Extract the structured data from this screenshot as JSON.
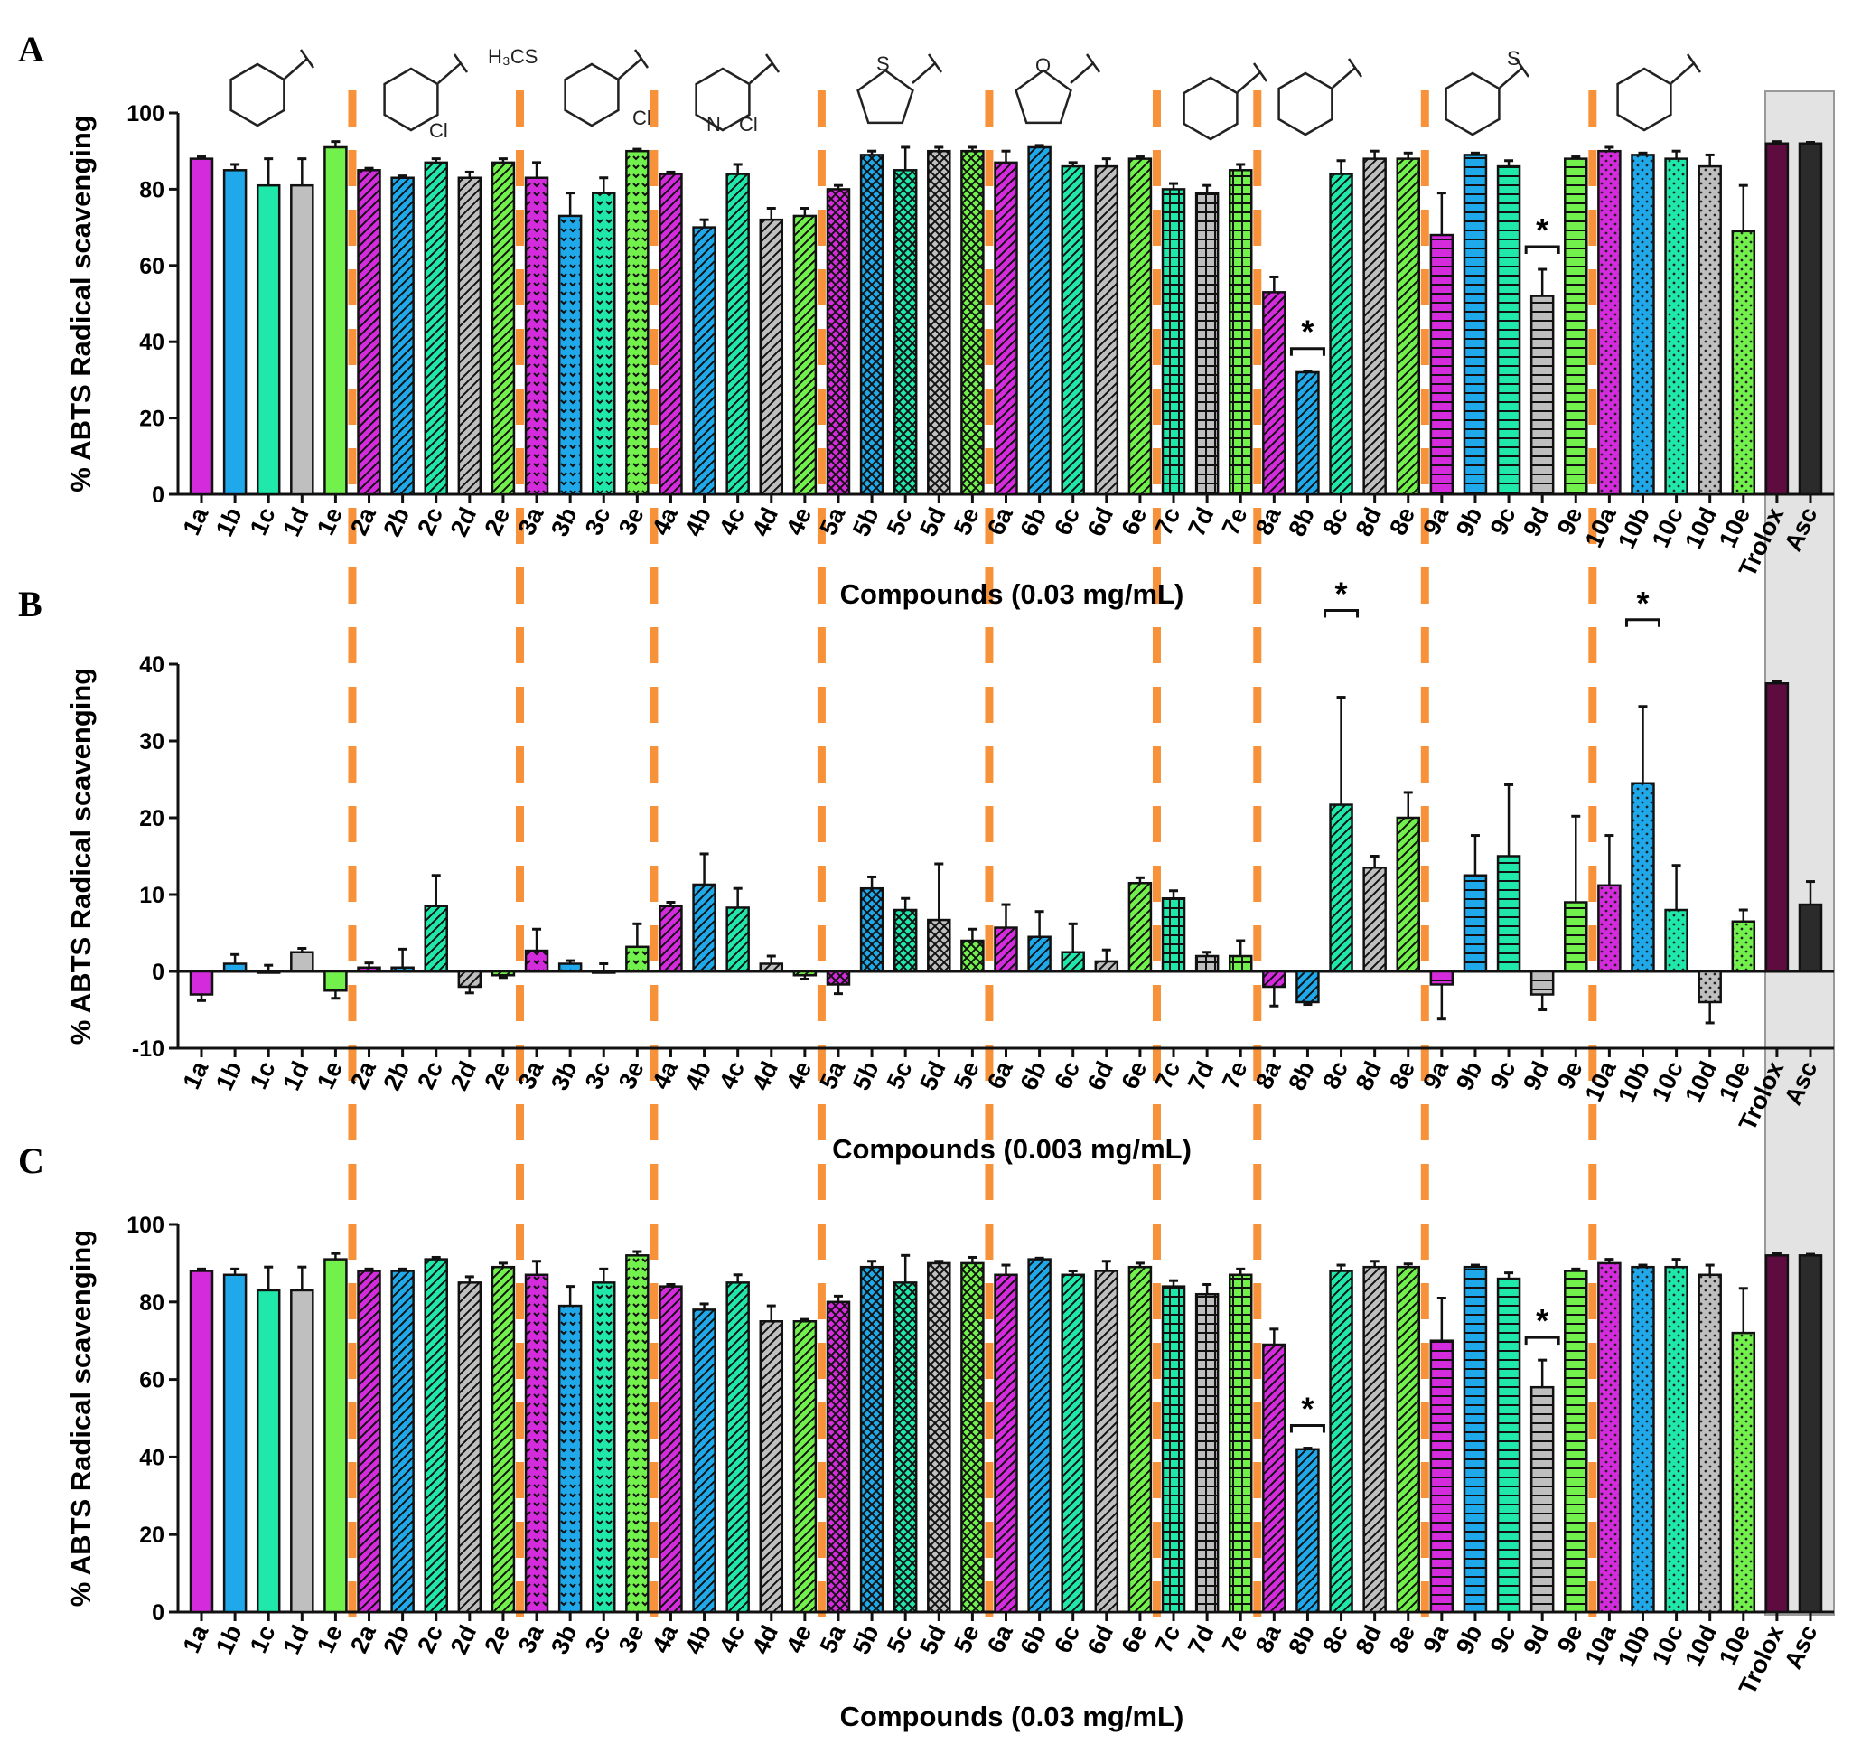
{
  "chart_data": [
    {
      "type": "bar",
      "panel": "A",
      "xlabel": "Compounds (0.03 mg/mL)",
      "ylabel": "% ABTS Radical scavenging",
      "ylim": [
        0,
        100
      ],
      "yticks": [
        0,
        20,
        40,
        60,
        80,
        100
      ],
      "values": [
        88,
        85,
        81,
        81,
        91,
        85,
        83,
        87,
        83,
        87,
        83,
        73,
        79,
        90,
        84,
        70,
        84,
        72,
        73,
        80,
        89,
        85,
        90,
        90,
        87,
        91,
        86,
        86,
        88,
        80,
        79,
        85,
        53,
        32,
        84,
        88,
        88,
        68,
        89,
        86,
        52,
        88,
        90,
        89,
        88,
        86,
        69,
        92,
        92
      ],
      "errors": [
        0.5,
        1.5,
        7,
        7,
        1.5,
        0.5,
        0.5,
        1,
        1.5,
        1,
        4,
        6,
        4,
        0.5,
        0.5,
        2,
        2.5,
        3,
        2,
        1,
        1,
        6,
        1,
        1,
        3,
        0.5,
        1,
        2,
        0.5,
        1.5,
        2,
        1.5,
        4,
        0.3,
        3.5,
        2,
        1.5,
        11,
        0.5,
        1.5,
        7,
        0.5,
        1,
        0.5,
        2,
        3,
        12,
        0.5,
        0.3
      ],
      "significance": [
        "8b",
        "9d"
      ],
      "sig_label": "*"
    },
    {
      "type": "bar",
      "panel": "B",
      "xlabel": "Compounds (0.003 mg/mL)",
      "ylabel": "% ABTS Radical scavenging",
      "ylim": [
        -10,
        40
      ],
      "yticks": [
        -10,
        0,
        10,
        20,
        30,
        40
      ],
      "values": [
        -3,
        1,
        0,
        2.5,
        -2.5,
        0.5,
        0.5,
        8.5,
        -2,
        -0.5,
        2.7,
        1,
        0,
        3.2,
        8.5,
        11.3,
        8.3,
        1,
        -0.5,
        -1.7,
        10.8,
        8,
        6.7,
        4,
        5.7,
        4.5,
        2.5,
        1.3,
        11.5,
        9.5,
        2,
        2,
        -2,
        -4,
        21.7,
        13.5,
        20,
        -1.7,
        12.5,
        15,
        -3,
        9,
        11.2,
        24.5,
        8,
        -4,
        6.5,
        37.5,
        8.7
      ],
      "errors": [
        0.8,
        1.2,
        0.8,
        0.5,
        1,
        0.6,
        2.4,
        4,
        0.8,
        0.3,
        2.8,
        0.4,
        1,
        3,
        0.5,
        4,
        2.5,
        1,
        0.5,
        1.2,
        1.5,
        1.5,
        7.3,
        1.5,
        3,
        3.3,
        3.7,
        1.5,
        0.7,
        1,
        0.5,
        2,
        2.5,
        0.3,
        14,
        1.5,
        3.3,
        4.5,
        5.2,
        9.3,
        2,
        11.2,
        6.5,
        10,
        5.8,
        2.7,
        1.5,
        0.3,
        3
      ],
      "significance": [
        "8c",
        "10b"
      ],
      "sig_label": "*"
    },
    {
      "type": "bar",
      "panel": "C",
      "xlabel": "Compounds (0.03 mg/mL)",
      "ylabel": "% ABTS Radical scavenging",
      "ylim": [
        0,
        100
      ],
      "yticks": [
        0,
        20,
        40,
        60,
        80,
        100
      ],
      "values": [
        88,
        87,
        83,
        83,
        91,
        88,
        88,
        91,
        85,
        89,
        87,
        79,
        85,
        92,
        84,
        78,
        85,
        75,
        75,
        80,
        89,
        85,
        90,
        90,
        87,
        91,
        87,
        88,
        89,
        84,
        82,
        87,
        69,
        42,
        88,
        89,
        89,
        70,
        89,
        86,
        58,
        88,
        90,
        89,
        89,
        87,
        72,
        92,
        92
      ],
      "errors": [
        0.5,
        1.5,
        6,
        6,
        1.5,
        0.5,
        0.5,
        0.5,
        1.5,
        1,
        3.5,
        5,
        3.5,
        1,
        0.5,
        1.5,
        2,
        4,
        0.5,
        1.5,
        1.5,
        7,
        0.5,
        1.5,
        2.5,
        0.3,
        1,
        2.5,
        1,
        1.5,
        2.5,
        1.5,
        4,
        0.3,
        1.5,
        1.5,
        0.8,
        11,
        0.5,
        1.5,
        7,
        0.5,
        1,
        0.5,
        2,
        2.5,
        11.5,
        0.5,
        0.3
      ],
      "significance": [
        "8b",
        "9d"
      ],
      "sig_label": "*"
    }
  ],
  "categories": [
    "1a",
    "1b",
    "1c",
    "1d",
    "1e",
    "2a",
    "2b",
    "2c",
    "2d",
    "2e",
    "3a",
    "3b",
    "3c",
    "3e",
    "4a",
    "4b",
    "4c",
    "4d",
    "4e",
    "5a",
    "5b",
    "5c",
    "5d",
    "5e",
    "6a",
    "6b",
    "6c",
    "6d",
    "6e",
    "7c",
    "7d",
    "7e",
    "8a",
    "8b",
    "8c",
    "8d",
    "8e",
    "9a",
    "9b",
    "9c",
    "9d",
    "9e",
    "10a",
    "10b",
    "10c",
    "10d",
    "10e",
    "Trolox",
    "Asc"
  ],
  "group_boundaries_after": [
    "1e",
    "2e",
    "3e",
    "4e",
    "5e",
    "6e",
    "7e",
    "8e",
    "9e"
  ],
  "highlighted_references": [
    "Trolox",
    "Asc"
  ],
  "colors": {
    "a": "#d42bdc",
    "b": "#1fa9ea",
    "c": "#1fe8aa",
    "d": "#bfbfbf",
    "e": "#72f04c",
    "Trolox": "#5e0b40",
    "Asc": "#2b2b2b",
    "divider": "#f7923a",
    "reference_band": "#e3e3e3"
  },
  "structure_labels": {
    "s2": "Cl",
    "s3_left": "H₃CS",
    "s3_right": "Cl",
    "s4_n": "N",
    "s4_cl": "Cl",
    "s5": "S",
    "s6": "O",
    "s9": "S"
  }
}
